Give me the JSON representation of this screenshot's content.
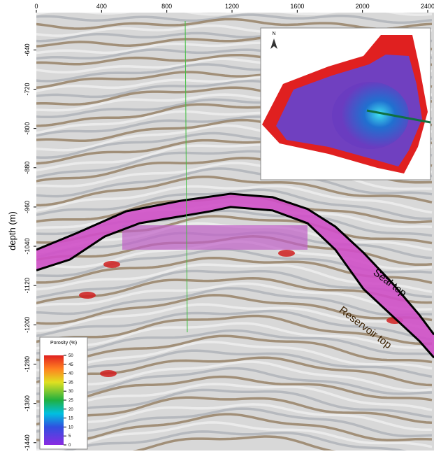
{
  "chart_data": {
    "type": "seismic-section",
    "y_label": "depth (m)",
    "xlim": [
      0,
      2439
    ],
    "ylim": [
      -1456,
      -564
    ],
    "xticks": [
      0,
      400,
      800,
      1200,
      1600,
      2000,
      2400
    ],
    "yticks": [
      -640,
      -720,
      -800,
      -880,
      -960,
      -1040,
      -1120,
      -1200,
      -1280,
      -1360,
      -1440
    ],
    "series": [
      {
        "name": "Seal top",
        "color": "#000000",
        "x": [
          0,
          249,
          549,
          891,
          1191,
          1449,
          1663,
          1834,
          2006,
          2177,
          2349,
          2439
        ],
        "values": [
          -1047,
          -1013,
          -969,
          -947,
          -933,
          -940,
          -964,
          -1000,
          -1053,
          -1113,
          -1180,
          -1220
        ]
      },
      {
        "name": "Reservoir top",
        "color": "#000000",
        "x": [
          0,
          206,
          420,
          634,
          1063,
          1191,
          1449,
          1663,
          1834,
          2006,
          2177,
          2349,
          2439
        ],
        "values": [
          -1089,
          -1067,
          -1020,
          -993,
          -969,
          -960,
          -967,
          -993,
          -1047,
          -1127,
          -1180,
          -1233,
          -1267
        ]
      }
    ],
    "colorbar": {
      "label": "Porosity (%)",
      "ticks": [
        0,
        5,
        10,
        15,
        20,
        25,
        30,
        35,
        40,
        45,
        50
      ]
    },
    "inset": {
      "north": "N"
    }
  }
}
